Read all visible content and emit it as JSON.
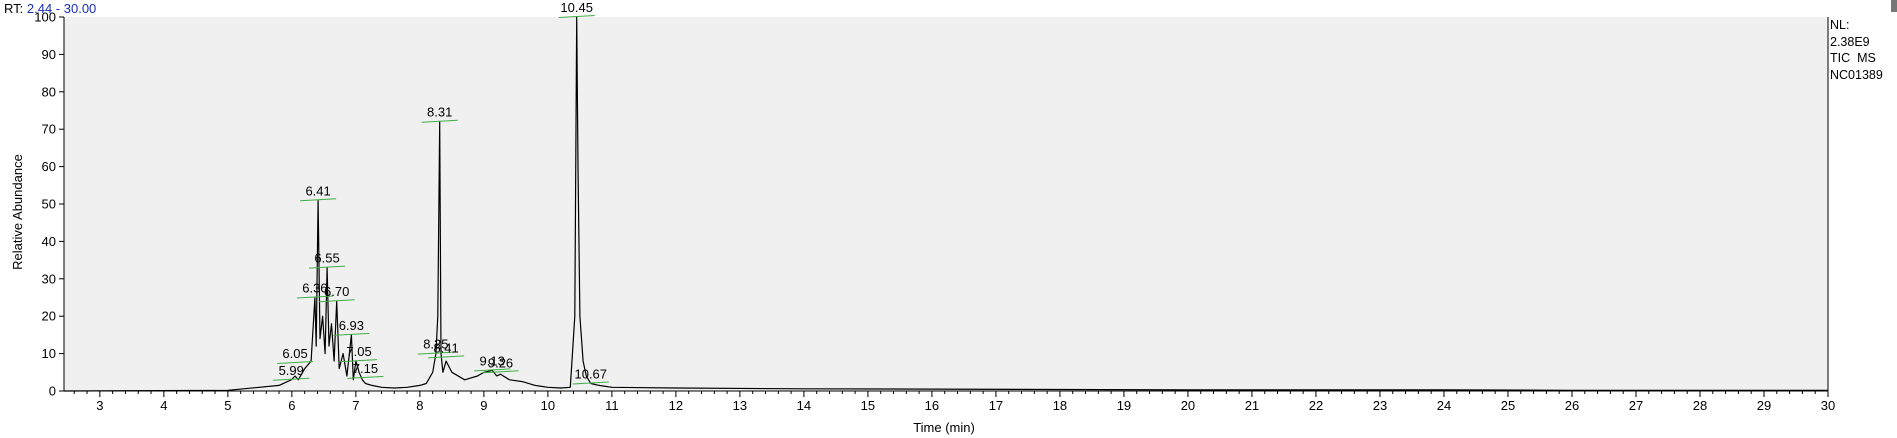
{
  "header": {
    "rt_label": "RT:",
    "rt_range": "2.44 - 30.00"
  },
  "nl_info": {
    "line1": "NL:",
    "line2": "2.38E9",
    "line3": "TIC  MS",
    "line4": "NC01389"
  },
  "colors": {
    "trace": "#000000",
    "baseline_marker": "#3cb043",
    "rt_value": "#1a2fb5",
    "plot_bg": "#f0f0f0"
  },
  "chart_data": {
    "type": "line",
    "xlabel": "Time (min)",
    "ylabel": "Relative Abundance",
    "xlim": [
      2.44,
      30.0
    ],
    "ylim": [
      0,
      100
    ],
    "x_ticks": [
      3,
      4,
      5,
      6,
      7,
      8,
      9,
      10,
      11,
      12,
      13,
      14,
      15,
      16,
      17,
      18,
      19,
      20,
      21,
      22,
      23,
      24,
      25,
      26,
      27,
      28,
      29,
      30
    ],
    "y_ticks": [
      0,
      10,
      20,
      30,
      40,
      50,
      60,
      70,
      80,
      90,
      100
    ],
    "series": [
      {
        "x": [
          2.44,
          5.0,
          5.8,
          5.99,
          6.05,
          6.1,
          6.2,
          6.3,
          6.36,
          6.38,
          6.41,
          6.44,
          6.48,
          6.52,
          6.55,
          6.58,
          6.62,
          6.66,
          6.7,
          6.74,
          6.8,
          6.86,
          6.93,
          6.96,
          7.0,
          7.05,
          7.1,
          7.15,
          7.25,
          7.4,
          7.6,
          7.8,
          8.0,
          8.1,
          8.2,
          8.25,
          8.28,
          8.31,
          8.33,
          8.36,
          8.41,
          8.5,
          8.7,
          8.9,
          9.0,
          9.13,
          9.2,
          9.26,
          9.4,
          9.6,
          9.8,
          10.0,
          10.2,
          10.35,
          10.42,
          10.45,
          10.47,
          10.5,
          10.55,
          10.6,
          10.67,
          10.8,
          11.0,
          12,
          14,
          16,
          18,
          20,
          22,
          24,
          26,
          28,
          30
        ],
        "y": [
          0,
          0.2,
          1.5,
          3,
          4,
          3,
          6,
          8,
          25,
          12,
          51,
          14,
          20,
          10,
          33,
          12,
          18,
          8,
          24,
          6,
          10,
          4,
          15,
          3,
          8,
          5,
          3,
          2,
          1.5,
          1,
          0.8,
          1,
          1.5,
          2,
          5,
          10,
          20,
          72,
          10,
          5,
          8,
          5,
          3,
          4,
          5,
          5.5,
          4,
          4.5,
          3,
          2.5,
          1.5,
          1,
          0.8,
          1,
          20,
          100,
          60,
          20,
          8,
          4,
          2,
          1.5,
          1,
          0.8,
          0.6,
          0.5,
          0.4,
          0.3,
          0.3,
          0.3,
          0.2,
          0.2,
          0.2
        ]
      }
    ],
    "peak_labels": [
      {
        "rt": "5.99",
        "x": 5.99,
        "y": 3
      },
      {
        "rt": "6.05",
        "x": 6.05,
        "y": 7.5
      },
      {
        "rt": "6.36",
        "x": 6.36,
        "y": 25
      },
      {
        "rt": "6.41",
        "x": 6.41,
        "y": 51
      },
      {
        "rt": "6.55",
        "x": 6.55,
        "y": 33
      },
      {
        "rt": "6.70",
        "x": 6.7,
        "y": 24
      },
      {
        "rt": "6.93",
        "x": 6.93,
        "y": 15
      },
      {
        "rt": "7.05",
        "x": 7.05,
        "y": 8
      },
      {
        "rt": "7.15",
        "x": 7.15,
        "y": 3.5
      },
      {
        "rt": "8.25",
        "x": 8.25,
        "y": 10
      },
      {
        "rt": "8.31",
        "x": 8.31,
        "y": 72
      },
      {
        "rt": "8.41",
        "x": 8.41,
        "y": 9
      },
      {
        "rt": "9.13",
        "x": 9.13,
        "y": 5.5
      },
      {
        "rt": "9.26",
        "x": 9.26,
        "y": 5
      },
      {
        "rt": "10.45",
        "x": 10.45,
        "y": 100
      },
      {
        "rt": "10.67",
        "x": 10.67,
        "y": 2
      }
    ]
  }
}
